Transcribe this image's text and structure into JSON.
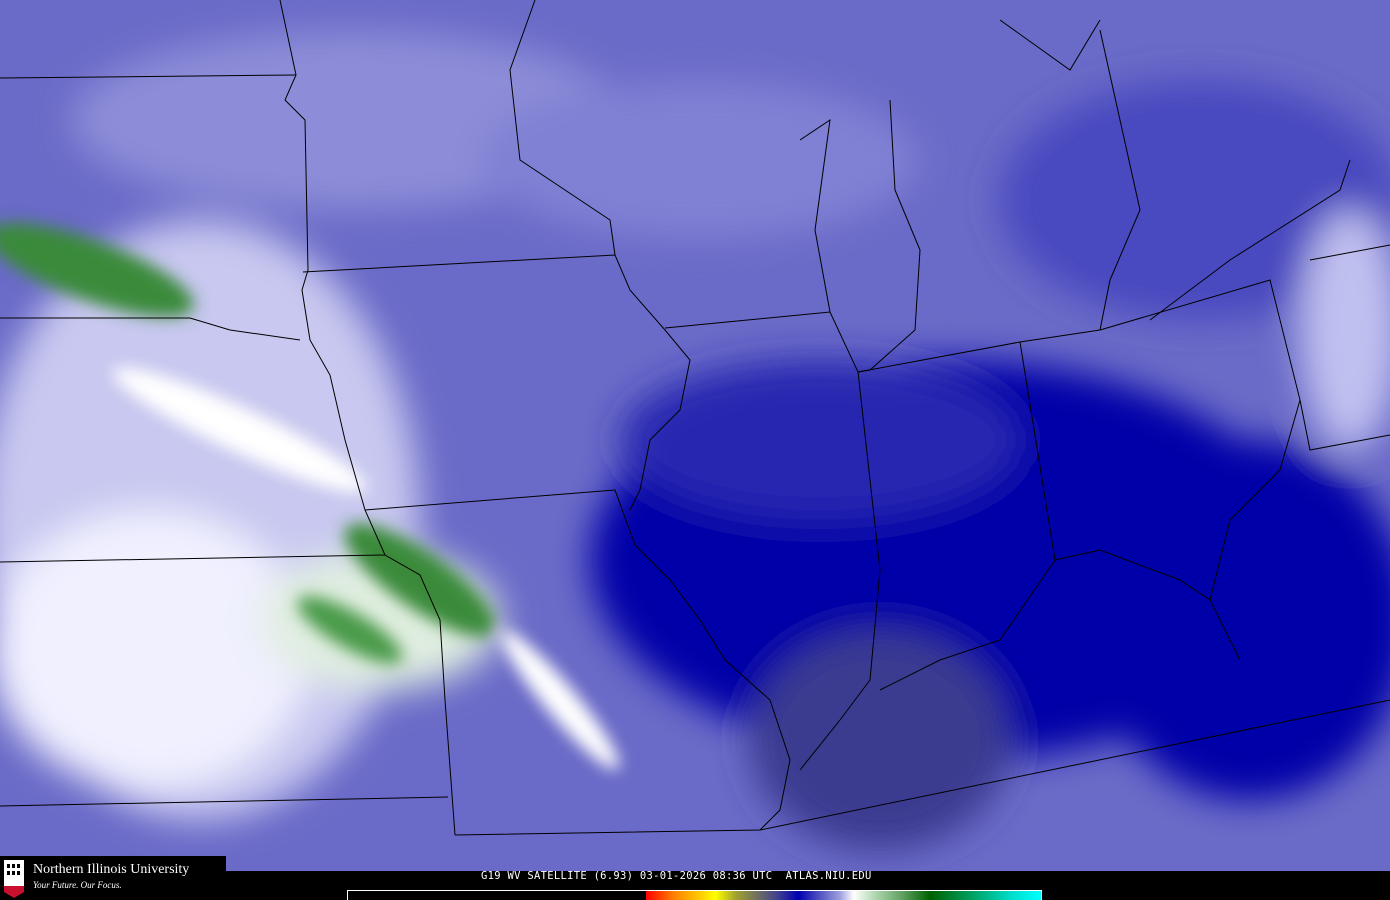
{
  "caption": "G19 WV SATELLITE (6.93) 03-01-2026 08:36 UTC  ATLAS.NIU.EDU",
  "logo": {
    "title": "Northern Illinois University",
    "tagline": "Your Future. Our Focus.",
    "mark": "NIU"
  },
  "colors": {
    "background_wv": "#6a6ac8",
    "dry_dark": "#0000a8",
    "moist_white": "#f0f0ff",
    "moist_green": "#3a8a3a",
    "boundaries": "#000000"
  },
  "colorbar": {
    "stops": [
      "#000000",
      "#ff0000",
      "#ff8000",
      "#ffff00",
      "#707060",
      "#0000b0",
      "#a0a0e0",
      "#ffffff",
      "#60a060",
      "#006000",
      "#00ffff"
    ]
  }
}
